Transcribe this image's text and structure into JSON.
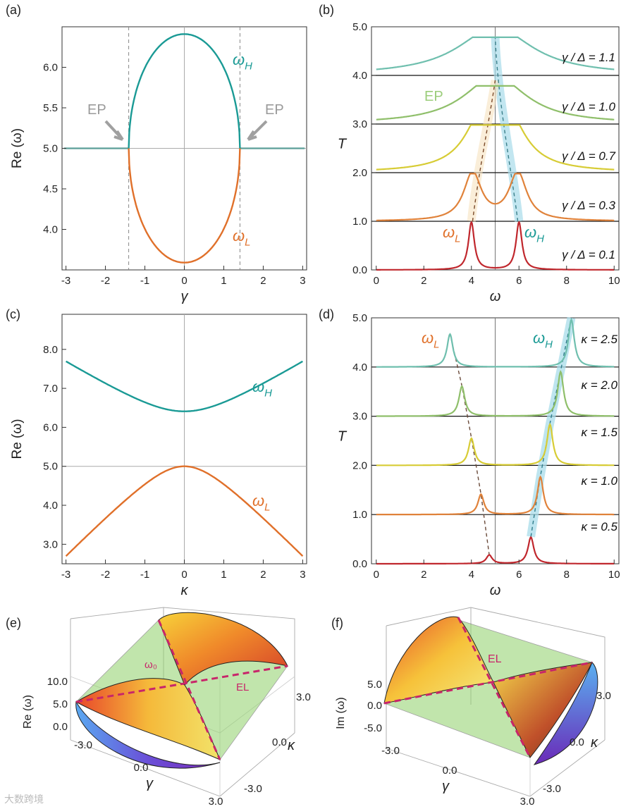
{
  "figure": {
    "watermark": "大数跨境",
    "colors": {
      "teal": "#1a9a95",
      "orange": "#e0702a",
      "gray_label": "#9a9a9a",
      "ep_green": "#9bcd7a",
      "magenta": "#c8256a"
    }
  },
  "chart_data": [
    {
      "id": "a",
      "type": "line",
      "panel_label": "(a)",
      "xlabel": "γ",
      "ylabel": "Re (ω)",
      "xlim": [
        -3.1,
        3.1
      ],
      "ylim": [
        3.5,
        6.5
      ],
      "xticks": [
        "-3",
        "-2",
        "-1",
        "0",
        "1",
        "2",
        "3"
      ],
      "yticks": [
        "4.0",
        "4.5",
        "5.0",
        "5.5",
        "6.0"
      ],
      "omega0": 5.0,
      "ep_gamma": 1.41,
      "series": [
        {
          "name": "ωH",
          "label_main": "ω",
          "label_sub": "H",
          "color": "#1a9a95"
        },
        {
          "name": "ωL",
          "label_main": "ω",
          "label_sub": "L",
          "color": "#e0702a"
        }
      ],
      "annotations": [
        "EP",
        "EP"
      ]
    },
    {
      "id": "b",
      "type": "line",
      "panel_label": "(b)",
      "xlabel": "ω",
      "ylabel": "T",
      "xlim": [
        -0.2,
        10.2
      ],
      "ylim": [
        0,
        5
      ],
      "xticks": [
        "0",
        "2",
        "4",
        "6",
        "8",
        "10"
      ],
      "yticks": [
        "0.0",
        "1.0",
        "2.0",
        "3.0",
        "4.0",
        "5.0"
      ],
      "series": [
        {
          "name": "γ / Δ = 0.1",
          "offset": 0,
          "peaks": [
            4.0,
            6.0
          ],
          "width": 0.15,
          "color": "#c0272d"
        },
        {
          "name": "γ / Δ = 0.3",
          "offset": 1,
          "peaks": [
            4.05,
            5.95
          ],
          "width": 0.45,
          "color": "#e0823a"
        },
        {
          "name": "γ / Δ = 0.7",
          "offset": 2,
          "peaks": [
            4.5,
            5.5
          ],
          "width": 0.9,
          "color": "#d7cc35"
        },
        {
          "name": "γ / Δ = 1.0",
          "offset": 3,
          "peaks": [
            5.0
          ],
          "width": 1.6,
          "color": "#8fbf6a"
        },
        {
          "name": "γ / Δ = 1.1",
          "offset": 4,
          "peaks": [
            5.0
          ],
          "width": 1.9,
          "color": "#6fbfae"
        }
      ],
      "annotations": [
        {
          "text": "EP",
          "color": "#9bcd7a"
        },
        {
          "main": "ω",
          "sub": "L",
          "color": "#e0702a"
        },
        {
          "main": "ω",
          "sub": "H",
          "color": "#1a9a95"
        }
      ]
    },
    {
      "id": "c",
      "type": "line",
      "panel_label": "(c)",
      "xlabel": "κ",
      "ylabel": "Re (ω)",
      "xlim": [
        -3.1,
        3.1
      ],
      "ylim": [
        2.5,
        8.9
      ],
      "xticks": [
        "-3",
        "-2",
        "-1",
        "0",
        "1",
        "2",
        "3"
      ],
      "yticks": [
        "3.0",
        "4.0",
        "5.0",
        "6.0",
        "7.0",
        "8.0"
      ],
      "series": [
        {
          "name": "ωH",
          "label_main": "ω",
          "label_sub": "H",
          "color": "#1a9a95"
        },
        {
          "name": "ωL",
          "label_main": "ω",
          "label_sub": "L",
          "color": "#e0702a"
        }
      ]
    },
    {
      "id": "d",
      "type": "line",
      "panel_label": "(d)",
      "xlabel": "ω",
      "ylabel": "T",
      "xlim": [
        -0.2,
        10.2
      ],
      "ylim": [
        0,
        5
      ],
      "xticks": [
        "0",
        "2",
        "4",
        "6",
        "8",
        "10"
      ],
      "yticks": [
        "0.0",
        "1.0",
        "2.0",
        "3.0",
        "4.0",
        "5.0"
      ],
      "series": [
        {
          "name": "κ = 0.5",
          "offset": 0,
          "peaks": [
            4.75,
            6.5
          ],
          "amps": [
            0.18,
            0.55
          ],
          "width": 0.15,
          "color": "#c0272d"
        },
        {
          "name": "κ = 1.0",
          "offset": 1,
          "peaks": [
            4.4,
            6.9
          ],
          "amps": [
            0.42,
            0.78
          ],
          "width": 0.15,
          "color": "#e0823a"
        },
        {
          "name": "κ = 1.5",
          "offset": 2,
          "peaks": [
            4.0,
            7.3
          ],
          "amps": [
            0.56,
            0.85
          ],
          "width": 0.15,
          "color": "#d7cc35"
        },
        {
          "name": "κ = 2.0",
          "offset": 3,
          "peaks": [
            3.6,
            7.75
          ],
          "amps": [
            0.62,
            0.92
          ],
          "width": 0.15,
          "color": "#8fbf6a"
        },
        {
          "name": "κ = 2.5",
          "offset": 4,
          "peaks": [
            3.1,
            8.2
          ],
          "amps": [
            0.68,
            0.98
          ],
          "width": 0.15,
          "color": "#6fbfae"
        }
      ],
      "annotations": [
        {
          "main": "ω",
          "sub": "L",
          "color": "#e0702a"
        },
        {
          "main": "ω",
          "sub": "H",
          "color": "#1a9a95"
        }
      ]
    },
    {
      "id": "e",
      "type": "surface3d",
      "panel_label": "(e)",
      "xlabel": "γ",
      "ylabel": "κ",
      "zlabel": "Re (ω)",
      "x_ticks": [
        "-3.0",
        "0.0",
        "3.0"
      ],
      "y_ticks": [
        "-3.0",
        "0.0",
        "3.0"
      ],
      "z_ticks": [
        "0.0",
        "5.0",
        "10.0"
      ],
      "annotations": [
        "ω₀",
        "EL"
      ]
    },
    {
      "id": "f",
      "type": "surface3d",
      "panel_label": "(f)",
      "xlabel": "γ",
      "ylabel": "κ",
      "zlabel": "Im (ω)",
      "x_ticks": [
        "-3.0",
        "0.0",
        "3.0"
      ],
      "y_ticks": [
        "-3.0",
        "0.0",
        "3.0"
      ],
      "z_ticks": [
        "-5.0",
        "0.0",
        "5.0"
      ],
      "annotations": [
        "EL"
      ]
    }
  ]
}
